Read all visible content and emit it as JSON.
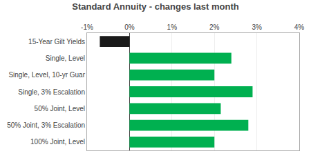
{
  "chart_data": {
    "type": "bar",
    "orientation": "horizontal",
    "title": "Standard Annuity - changes last month",
    "categories": [
      "15-Year Gilt Yields",
      "Single, Level",
      "Single, Level, 10-yr Guar",
      "Single, 3% Escalation",
      "50% Joint, Level",
      "50% Joint, 3% Escalation",
      "100% Joint, Level"
    ],
    "values": [
      -0.7,
      2.4,
      2.0,
      2.9,
      2.15,
      2.8,
      2.0
    ],
    "colors": [
      "#1a1a1a",
      "#00b050",
      "#00b050",
      "#00b050",
      "#00b050",
      "#00b050",
      "#00b050"
    ],
    "xlim": [
      -1,
      4
    ],
    "xticks": [
      {
        "value": -1,
        "label": "-1%"
      },
      {
        "value": 0,
        "label": "0%"
      },
      {
        "value": 1,
        "label": "1%"
      },
      {
        "value": 2,
        "label": "2%"
      },
      {
        "value": 3,
        "label": "3%"
      },
      {
        "value": 4,
        "label": "4%"
      }
    ],
    "grid": true
  }
}
